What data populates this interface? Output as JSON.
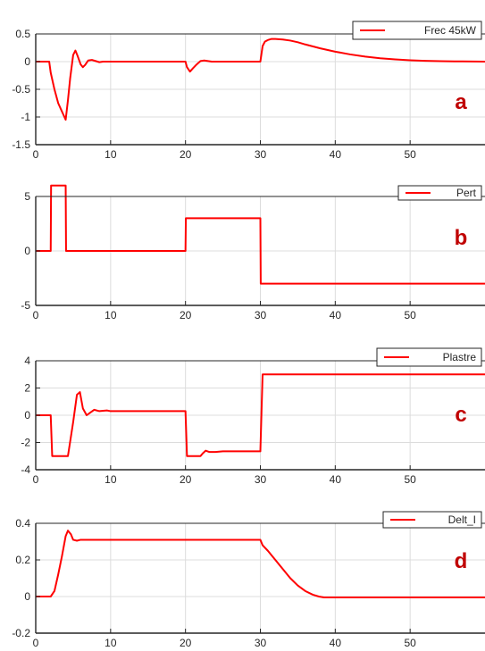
{
  "chart_data": [
    {
      "type": "line",
      "panel_letter": "a",
      "legend": "Frec 45kW",
      "legend_position": "top-right",
      "grid": true,
      "xlim": [
        0,
        60
      ],
      "ylim": [
        -1.5,
        0.5
      ],
      "xticks": [
        0,
        10,
        20,
        30,
        40,
        50
      ],
      "yticks": [
        0.5,
        0,
        -0.5,
        -1,
        -1.5
      ],
      "ytick_labels": [
        "0.5",
        "0",
        "-0.5",
        "-1",
        "-1.5"
      ],
      "series": [
        {
          "name": "Frec 45kW",
          "color": "#ff0000",
          "x": [
            0,
            1.8,
            2,
            2.5,
            3,
            3.5,
            4,
            4.3,
            4.6,
            5,
            5.3,
            5.6,
            6,
            6.3,
            6.6,
            7,
            7.5,
            8,
            8.5,
            9,
            10,
            20,
            20.2,
            20.6,
            21,
            21.5,
            22,
            22.5,
            23,
            23.5,
            24,
            25,
            30,
            30.3,
            30.6,
            31,
            31.5,
            32,
            33,
            34,
            35,
            36,
            38,
            40,
            42,
            44,
            46,
            48,
            50,
            52,
            54,
            57,
            60
          ],
          "y": [
            0,
            0,
            -0.2,
            -0.5,
            -0.75,
            -0.9,
            -1.05,
            -0.7,
            -0.3,
            0.12,
            0.2,
            0.1,
            -0.05,
            -0.1,
            -0.06,
            0.02,
            0.03,
            0.01,
            -0.01,
            0,
            0,
            0,
            -0.1,
            -0.18,
            -0.12,
            -0.05,
            0.01,
            0.02,
            0.01,
            0,
            0,
            0,
            0,
            0.28,
            0.36,
            0.39,
            0.41,
            0.41,
            0.4,
            0.38,
            0.35,
            0.31,
            0.24,
            0.18,
            0.13,
            0.09,
            0.06,
            0.04,
            0.025,
            0.015,
            0.008,
            0.003,
            0
          ]
        }
      ]
    },
    {
      "type": "line",
      "panel_letter": "b",
      "legend": "Pert",
      "legend_position": "top-right",
      "grid": true,
      "xlim": [
        0,
        60
      ],
      "ylim": [
        -5,
        5
      ],
      "xticks": [
        0,
        10,
        20,
        30,
        40,
        50
      ],
      "yticks": [
        5,
        0,
        -5
      ],
      "ytick_labels": [
        "5",
        "0",
        "-5"
      ],
      "series": [
        {
          "name": "Pert",
          "color": "#ff0000",
          "x": [
            0,
            2,
            2.05,
            4,
            4.05,
            20,
            20.05,
            30,
            30.05,
            60
          ],
          "y": [
            0,
            0,
            6,
            6,
            0,
            0,
            3,
            3,
            -3,
            -3
          ]
        }
      ]
    },
    {
      "type": "line",
      "panel_letter": "c",
      "legend": "Plastre",
      "legend_position": "top-right",
      "grid": true,
      "xlim": [
        0,
        60
      ],
      "ylim": [
        -4,
        4
      ],
      "xticks": [
        0,
        10,
        20,
        30,
        40,
        50
      ],
      "yticks": [
        4,
        2,
        0,
        -2,
        -4
      ],
      "ytick_labels": [
        "4",
        "2",
        "0",
        "-2",
        "-4"
      ],
      "series": [
        {
          "name": "Plastre",
          "color": "#ff0000",
          "x": [
            0,
            2,
            2.2,
            4,
            4.3,
            5,
            5.5,
            5.9,
            6.3,
            6.8,
            7.3,
            7.8,
            8.5,
            9.5,
            10,
            20,
            20.2,
            21,
            22,
            22.3,
            22.7,
            23.2,
            24,
            25,
            30,
            30.3,
            60
          ],
          "y": [
            0,
            0,
            -3,
            -3,
            -3,
            -0.5,
            1.5,
            1.7,
            0.5,
            0,
            0.2,
            0.4,
            0.3,
            0.35,
            0.3,
            0.3,
            -3,
            -3,
            -3,
            -2.8,
            -2.6,
            -2.7,
            -2.7,
            -2.65,
            -2.65,
            3,
            3
          ]
        }
      ]
    },
    {
      "type": "line",
      "panel_letter": "d",
      "legend": "Delt_I",
      "legend_position": "top-right",
      "grid": true,
      "xlim": [
        0,
        60
      ],
      "ylim": [
        -0.2,
        0.4
      ],
      "xticks": [
        0,
        10,
        20,
        30,
        40,
        50
      ],
      "yticks": [
        0.4,
        0.2,
        0,
        -0.2
      ],
      "ytick_labels": [
        "0.4",
        "0.2",
        "0",
        "-0.2"
      ],
      "series": [
        {
          "name": "Delt_I",
          "color": "#ff0000",
          "x": [
            0,
            2,
            2.5,
            3,
            3.5,
            4,
            4.3,
            4.7,
            5,
            5.5,
            6,
            7,
            10,
            20,
            30,
            30.3,
            31,
            32,
            33,
            34,
            35,
            36,
            37,
            37.8,
            38.5,
            39,
            40,
            50,
            60
          ],
          "y": [
            0,
            0,
            0.03,
            0.12,
            0.22,
            0.33,
            0.36,
            0.34,
            0.31,
            0.305,
            0.31,
            0.31,
            0.31,
            0.31,
            0.31,
            0.28,
            0.25,
            0.2,
            0.15,
            0.1,
            0.06,
            0.03,
            0.01,
            0,
            -0.005,
            -0.005,
            -0.005,
            -0.005,
            -0.005
          ]
        }
      ]
    }
  ]
}
